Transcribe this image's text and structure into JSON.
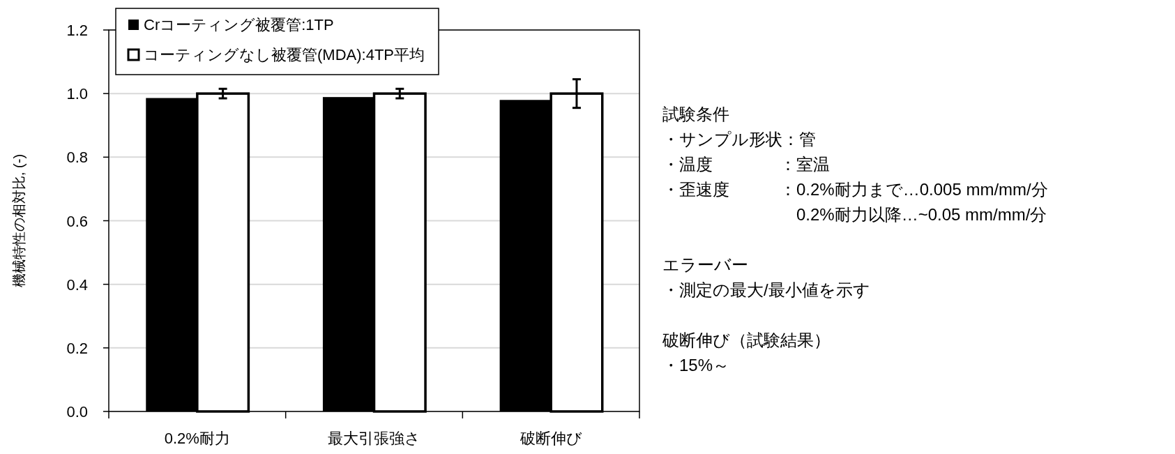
{
  "chart_data": {
    "type": "bar",
    "ylabel": "機械特性の相対比, (-)",
    "categories": [
      "0.2%耐力",
      "最大引張強さ",
      "破断伸び"
    ],
    "series": [
      {
        "name": "Crコーティング被覆管:1TP",
        "color": "#000000",
        "values": [
          0.986,
          0.989,
          0.98
        ]
      },
      {
        "name": "コーティングなし被覆管(MDA):4TP平均",
        "color": "#ffffff",
        "values": [
          1.0,
          1.0,
          1.0
        ],
        "errors": [
          0.015,
          0.015,
          0.045
        ]
      }
    ],
    "ylim": [
      0,
      1.2
    ],
    "yticks": [
      {
        "value": 0,
        "label": "0.0"
      },
      {
        "value": 0.2,
        "label": "0.2"
      },
      {
        "value": 0.4,
        "label": "0.4"
      },
      {
        "value": 0.6,
        "label": "0.6"
      },
      {
        "value": 0.8,
        "label": "0.8"
      },
      {
        "value": 1.0,
        "label": "1.0"
      },
      {
        "value": 1.2,
        "label": "1.2"
      }
    ],
    "grid": "y",
    "legend": "top left",
    "annotations": [
      "試験条件",
      "・サンプル形状：管",
      "・温度　　　　：室温",
      "・歪速度　　　：0.2%耐力まで…0.005 mm/mm/分",
      "　　　　　　　　0.2%耐力以降…~0.05 mm/mm/分",
      "エラーバー",
      "・測定の最大/最小値を示す",
      "破断伸び（試験結果）",
      "・15%～"
    ]
  }
}
